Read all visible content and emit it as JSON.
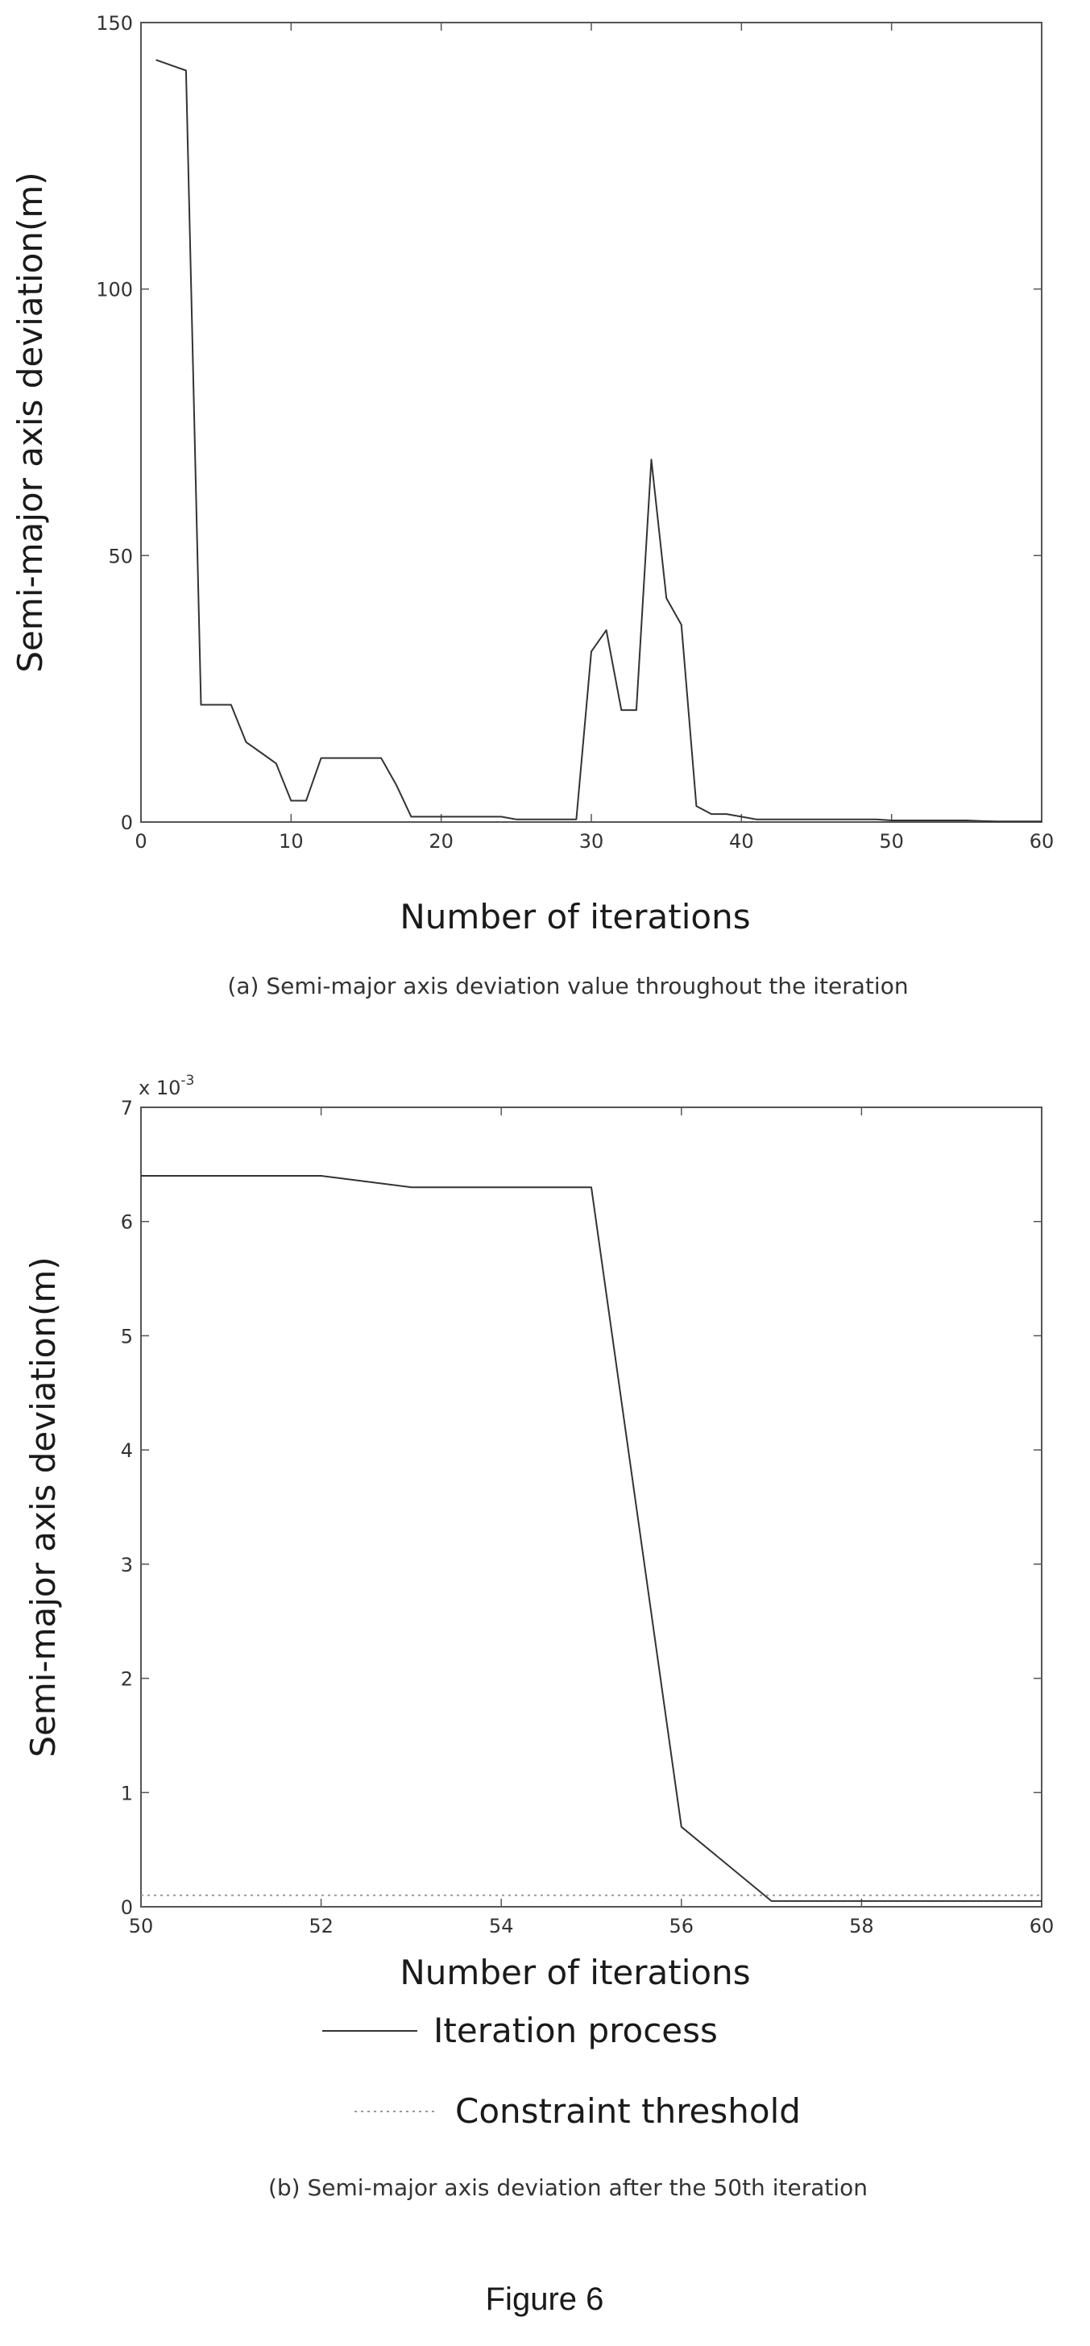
{
  "chart_data": [
    {
      "type": "line",
      "xlabel": "Number of iterations",
      "ylabel": "Semi-major axis deviation(m)",
      "xlim": [
        0,
        60
      ],
      "ylim": [
        0,
        150
      ],
      "xticks": [
        "0",
        "10",
        "20",
        "30",
        "40",
        "50",
        "60"
      ],
      "yticks": [
        "0",
        "50",
        "100",
        "150"
      ],
      "caption": "(a) Semi-major axis deviation value throughout the iteration",
      "grid": false,
      "series": [
        {
          "x": [
            1,
            2,
            3,
            4,
            5,
            6,
            7,
            8,
            9,
            10,
            11,
            12,
            13,
            14,
            15,
            16,
            17,
            18,
            19,
            20,
            21,
            22,
            23,
            24,
            25,
            26,
            27,
            28,
            29,
            30,
            31,
            32,
            33,
            34,
            35,
            36,
            37,
            38,
            39,
            40,
            41,
            42,
            43,
            44,
            45,
            46,
            47,
            48,
            49,
            50,
            51,
            52,
            53,
            54,
            55,
            56,
            57,
            58,
            59,
            60
          ],
          "y": [
            143,
            142,
            141,
            22,
            22,
            22,
            15,
            13,
            11,
            4,
            4,
            12,
            12,
            12,
            12,
            12,
            7,
            1,
            1,
            1,
            1,
            1,
            1,
            1,
            0.5,
            0.5,
            0.5,
            0.5,
            0.5,
            32,
            36,
            21,
            21,
            68,
            42,
            37,
            3,
            1.5,
            1.5,
            1,
            0.5,
            0.5,
            0.5,
            0.5,
            0.5,
            0.5,
            0.5,
            0.5,
            0.5,
            0.3,
            0.3,
            0.3,
            0.3,
            0.3,
            0.3,
            0.2,
            0.1,
            0.1,
            0.1,
            0.1
          ]
        }
      ]
    },
    {
      "type": "line",
      "xlabel": "Number of iterations",
      "ylabel": "Semi-major axis deviation(m)",
      "xlim": [
        50,
        60
      ],
      "ylim": [
        0,
        7
      ],
      "y_multiplier": "x 10",
      "y_multiplier_exp": "-3",
      "xticks": [
        "50",
        "52",
        "54",
        "56",
        "58",
        "60"
      ],
      "yticks": [
        "0",
        "1",
        "2",
        "3",
        "4",
        "5",
        "6",
        "7"
      ],
      "caption": "(b) Semi-major axis deviation after the 50th iteration",
      "legend": "bottom",
      "grid": false,
      "series": [
        {
          "name": "Iteration process",
          "x": [
            50,
            51,
            52,
            53,
            54,
            55,
            56,
            57,
            58,
            59,
            60
          ],
          "y": [
            6.4,
            6.4,
            6.4,
            6.3,
            6.3,
            6.3,
            0.7,
            0.05,
            0.05,
            0.05,
            0.05
          ]
        },
        {
          "name": "Constraint threshold",
          "style": "dotted",
          "x": [
            50,
            60
          ],
          "y": [
            0.1,
            0.1
          ]
        }
      ]
    }
  ],
  "figure_title": "Figure 6"
}
